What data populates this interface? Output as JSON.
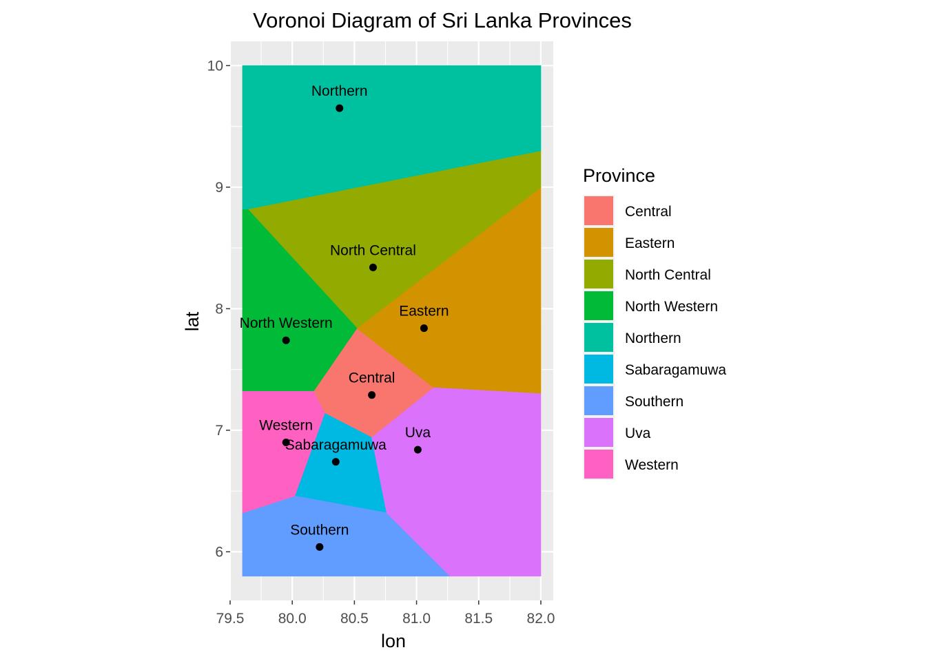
{
  "chart_data": {
    "type": "voronoi",
    "title": "Voronoi Diagram of Sri Lanka Provinces",
    "xlabel": "lon",
    "ylabel": "lat",
    "xlim": [
      79.5,
      82.1
    ],
    "ylim": [
      5.6,
      10.2
    ],
    "x_ticks": [
      "79.5",
      "80.0",
      "80.5",
      "81.0",
      "81.5",
      "82.0"
    ],
    "y_ticks": [
      "6",
      "7",
      "8",
      "9",
      "10"
    ],
    "grid": true,
    "legend_position": "right",
    "legend_title": "Province",
    "bbox": {
      "lon": [
        79.6,
        82.0
      ],
      "lat": [
        5.8,
        10.0
      ]
    },
    "provinces": [
      {
        "name": "Central",
        "color": "#F8766D",
        "lon": 80.64,
        "lat": 7.29,
        "cell": [
          [
            80.17,
            7.32
          ],
          [
            80.52,
            7.84
          ],
          [
            81.14,
            7.35
          ],
          [
            80.64,
            6.94
          ],
          [
            80.26,
            7.14
          ]
        ]
      },
      {
        "name": "Eastern",
        "color": "#D39200",
        "lon": 81.06,
        "lat": 7.84,
        "cell": [
          [
            80.52,
            7.84
          ],
          [
            82.0,
            9.0
          ],
          [
            82.0,
            7.3
          ],
          [
            81.14,
            7.35
          ]
        ]
      },
      {
        "name": "North Central",
        "color": "#93AA00",
        "lon": 80.65,
        "lat": 8.34,
        "cell": [
          [
            79.64,
            8.82
          ],
          [
            82.0,
            9.3
          ],
          [
            82.0,
            9.0
          ],
          [
            80.52,
            7.84
          ]
        ]
      },
      {
        "name": "North Western",
        "color": "#00BA38",
        "lon": 79.95,
        "lat": 7.74,
        "cell": [
          [
            79.6,
            8.82
          ],
          [
            79.64,
            8.82
          ],
          [
            80.52,
            7.84
          ],
          [
            80.17,
            7.32
          ],
          [
            79.6,
            7.32
          ]
        ]
      },
      {
        "name": "Northern",
        "color": "#00C19F",
        "lon": 80.38,
        "lat": 9.65,
        "cell": [
          [
            79.6,
            10.0
          ],
          [
            82.0,
            10.0
          ],
          [
            82.0,
            9.3
          ],
          [
            79.64,
            8.82
          ],
          [
            79.6,
            8.82
          ]
        ]
      },
      {
        "name": "Sabaragamuwa",
        "color": "#00B9E3",
        "lon": 80.35,
        "lat": 6.74,
        "cell": [
          [
            80.26,
            7.14
          ],
          [
            80.64,
            6.94
          ],
          [
            80.76,
            6.32
          ],
          [
            80.02,
            6.46
          ]
        ]
      },
      {
        "name": "Southern",
        "color": "#619CFF",
        "lon": 80.22,
        "lat": 6.04,
        "cell": [
          [
            79.6,
            6.32
          ],
          [
            80.02,
            6.46
          ],
          [
            80.76,
            6.32
          ],
          [
            81.27,
            5.8
          ],
          [
            79.6,
            5.8
          ]
        ]
      },
      {
        "name": "Uva",
        "color": "#DB72FB",
        "lon": 81.01,
        "lat": 6.84,
        "cell": [
          [
            80.64,
            6.94
          ],
          [
            81.14,
            7.35
          ],
          [
            82.0,
            7.3
          ],
          [
            82.0,
            5.8
          ],
          [
            81.27,
            5.8
          ],
          [
            80.76,
            6.32
          ]
        ]
      },
      {
        "name": "Western",
        "color": "#FF61C3",
        "lon": 79.95,
        "lat": 6.9,
        "cell": [
          [
            79.6,
            7.32
          ],
          [
            80.17,
            7.32
          ],
          [
            80.26,
            7.14
          ],
          [
            80.02,
            6.46
          ],
          [
            79.6,
            6.32
          ]
        ]
      }
    ]
  }
}
